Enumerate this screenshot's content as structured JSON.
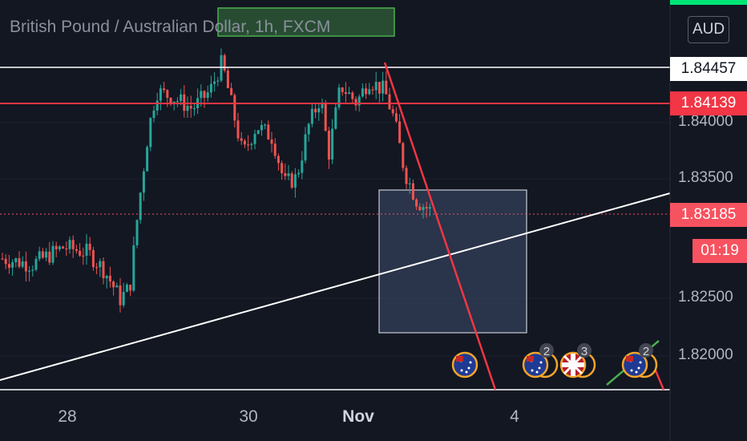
{
  "header": {
    "title": "British Pound / Australian Dollar, 1h, FXCM",
    "currency": "AUD"
  },
  "price_tags": {
    "resistance": "1.84457",
    "level": "1.84139",
    "current": "1.83185",
    "timer": "01:19"
  },
  "colors": {
    "background": "#131722",
    "up": "#26a69a",
    "down": "#ef5350",
    "red_line": "#f23645",
    "white_line": "#ffffff",
    "box_fill": "#3b4866",
    "green_box": "#4caf50"
  },
  "chart_data": {
    "type": "candlestick",
    "symbol": "British Pound / Australian Dollar",
    "timeframe": "1h",
    "broker": "FXCM",
    "x_ticks": [
      "28",
      "30",
      "Nov",
      "4"
    ],
    "y_ticks": [
      "1.84000",
      "1.83500",
      "1.82500",
      "1.82000"
    ],
    "ylim": [
      1.8173,
      1.8488
    ],
    "horizontal_levels": [
      {
        "price": 1.84457,
        "color": "white"
      },
      {
        "price": 1.84139,
        "color": "red"
      },
      {
        "price": 1.83185,
        "color": "red",
        "style": "dotted",
        "label": "current"
      }
    ],
    "candles_summary": "GBPAUD hourly: sideways near 1.828 on 27-28 Oct, drop to 1.8225, rally to 1.846 high on 29 Oct, range 1.833-1.845 until 1 Nov, then decline toward 1.832",
    "annotations": [
      {
        "type": "rectangle",
        "desc": "blue target zone",
        "price_top": 1.8338,
        "price_bottom": 1.8218
      },
      {
        "type": "rectangle",
        "desc": "green box at top",
        "price_top": 1.8488,
        "price_bottom": 1.8461
      },
      {
        "type": "trendline",
        "color": "red",
        "desc": "descending line from 1.8451 toward 1.8171"
      },
      {
        "type": "trendline",
        "color": "white",
        "desc": "ascending support from 1.8181 to 1.8337"
      }
    ],
    "event_markers": [
      {
        "flag": "AU",
        "count": ""
      },
      {
        "flag": "AU",
        "count": "2"
      },
      {
        "flag": "UK",
        "count": "3"
      },
      {
        "flag": "AU",
        "count": "2"
      }
    ]
  }
}
